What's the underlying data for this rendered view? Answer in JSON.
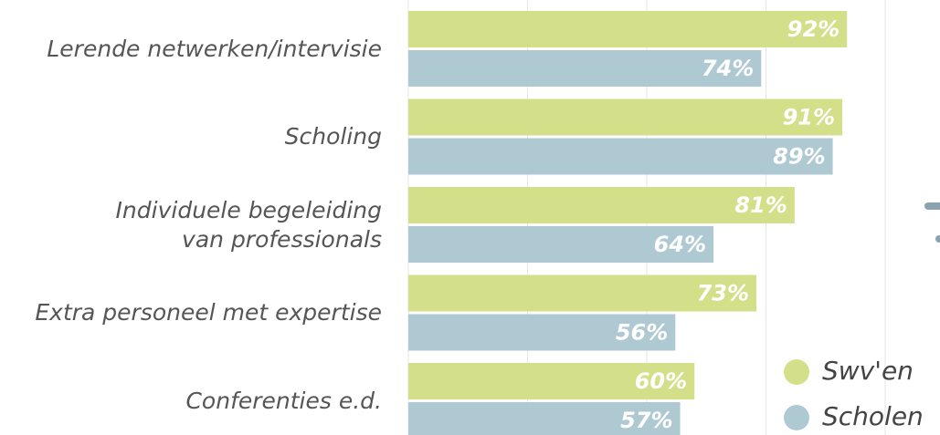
{
  "chart_data": {
    "type": "bar",
    "categories": [
      "Lerende netwerken/intervisie",
      "Scholing",
      "Individuele begeleiding\nvan professionals",
      "Extra personeel met expertise",
      "Conferenties e.d."
    ],
    "series": [
      {
        "name": "Swv'en",
        "color": "#d4df8a",
        "values": [
          92,
          91,
          81,
          73,
          60
        ],
        "value_labels": [
          "92%",
          "91%",
          "81%",
          "73%",
          "60%"
        ]
      },
      {
        "name": "Scholen",
        "color": "#afc9d3",
        "values": [
          74,
          89,
          64,
          56,
          57
        ],
        "value_labels": [
          "74%",
          "89%",
          "64%",
          "56%",
          "57%"
        ]
      }
    ],
    "xlim": [
      0,
      100
    ],
    "xticks": [
      0,
      25,
      50,
      75,
      100
    ],
    "grid": true,
    "legend": "lower right"
  }
}
